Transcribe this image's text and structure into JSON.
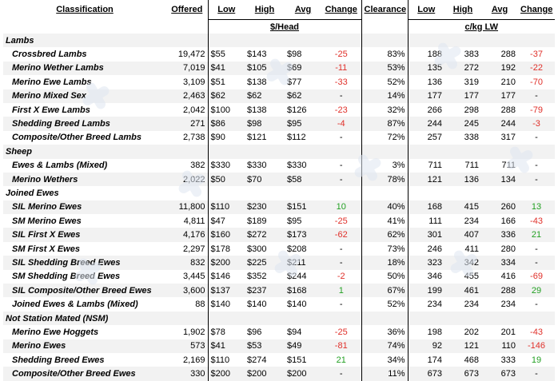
{
  "headers": {
    "classification": "Classification",
    "offered": "Offered",
    "low": "Low",
    "high": "High",
    "avg": "Avg",
    "change": "Change",
    "clearance": "Clearance",
    "low2": "Low",
    "high2": "High",
    "avg2": "Avg",
    "change2": "Change"
  },
  "units": {
    "head": "$/Head",
    "lw": "c/kg LW"
  },
  "rows": [
    {
      "type": "group",
      "label": "Lambs"
    },
    {
      "type": "item",
      "name": "Crossbred Lambs",
      "offered": "19,472",
      "low": "$55",
      "high": "$143",
      "avg": "$98",
      "change": "-25",
      "change_sign": "neg",
      "clearance": "83%",
      "low2": "188",
      "high2": "383",
      "avg2": "288",
      "change2": "-37",
      "change2_sign": "neg"
    },
    {
      "type": "item",
      "name": "Merino Wether Lambs",
      "offered": "7,019",
      "low": "$41",
      "high": "$105",
      "avg": "$69",
      "change": "-11",
      "change_sign": "neg",
      "clearance": "53%",
      "low2": "135",
      "high2": "272",
      "avg2": "192",
      "change2": "-22",
      "change2_sign": "neg"
    },
    {
      "type": "item",
      "name": "Merino Ewe Lambs",
      "offered": "3,109",
      "low": "$51",
      "high": "$138",
      "avg": "$77",
      "change": "-33",
      "change_sign": "neg",
      "clearance": "52%",
      "low2": "136",
      "high2": "319",
      "avg2": "210",
      "change2": "-70",
      "change2_sign": "neg"
    },
    {
      "type": "item",
      "name": "Merino Mixed Sex",
      "offered": "2,463",
      "low": "$62",
      "high": "$62",
      "avg": "$62",
      "change": "-",
      "change_sign": "neu",
      "clearance": "14%",
      "low2": "177",
      "high2": "177",
      "avg2": "177",
      "change2": "-",
      "change2_sign": "neu"
    },
    {
      "type": "item",
      "name": "First X Ewe Lambs",
      "offered": "2,042",
      "low": "$100",
      "high": "$138",
      "avg": "$126",
      "change": "-23",
      "change_sign": "neg",
      "clearance": "32%",
      "low2": "266",
      "high2": "298",
      "avg2": "288",
      "change2": "-79",
      "change2_sign": "neg"
    },
    {
      "type": "item",
      "name": "Shedding Breed Lambs",
      "offered": "271",
      "low": "$86",
      "high": "$98",
      "avg": "$95",
      "change": "-4",
      "change_sign": "neg",
      "clearance": "87%",
      "low2": "244",
      "high2": "245",
      "avg2": "244",
      "change2": "-3",
      "change2_sign": "neg"
    },
    {
      "type": "item",
      "name": "Composite/Other Breed Lambs",
      "offered": "2,738",
      "low": "$90",
      "high": "$121",
      "avg": "$112",
      "change": "-",
      "change_sign": "neu",
      "clearance": "72%",
      "low2": "257",
      "high2": "338",
      "avg2": "317",
      "change2": "-",
      "change2_sign": "neu"
    },
    {
      "type": "group",
      "label": "Sheep"
    },
    {
      "type": "item",
      "name": "Ewes & Lambs (Mixed)",
      "offered": "382",
      "low": "$330",
      "high": "$330",
      "avg": "$330",
      "change": "-",
      "change_sign": "neu",
      "clearance": "3%",
      "low2": "711",
      "high2": "711",
      "avg2": "711",
      "change2": "-",
      "change2_sign": "neu"
    },
    {
      "type": "item",
      "name": "Merino Wethers",
      "offered": "2,022",
      "low": "$50",
      "high": "$70",
      "avg": "$58",
      "change": "-",
      "change_sign": "neu",
      "clearance": "78%",
      "low2": "121",
      "high2": "136",
      "avg2": "134",
      "change2": "-",
      "change2_sign": "neu"
    },
    {
      "type": "group",
      "label": "Joined Ewes"
    },
    {
      "type": "item",
      "name": "SIL Merino Ewes",
      "offered": "11,800",
      "low": "$110",
      "high": "$230",
      "avg": "$151",
      "change": "10",
      "change_sign": "pos",
      "clearance": "40%",
      "low2": "168",
      "high2": "415",
      "avg2": "260",
      "change2": "13",
      "change2_sign": "pos"
    },
    {
      "type": "item",
      "name": "SM Merino Ewes",
      "offered": "4,811",
      "low": "$47",
      "high": "$189",
      "avg": "$95",
      "change": "-25",
      "change_sign": "neg",
      "clearance": "41%",
      "low2": "111",
      "high2": "234",
      "avg2": "166",
      "change2": "-43",
      "change2_sign": "neg"
    },
    {
      "type": "item",
      "name": "SIL First X Ewes",
      "offered": "4,176",
      "low": "$160",
      "high": "$272",
      "avg": "$173",
      "change": "-62",
      "change_sign": "neg",
      "clearance": "62%",
      "low2": "301",
      "high2": "407",
      "avg2": "336",
      "change2": "21",
      "change2_sign": "pos"
    },
    {
      "type": "item",
      "name": "SM First X Ewes",
      "offered": "2,297",
      "low": "$178",
      "high": "$300",
      "avg": "$208",
      "change": "-",
      "change_sign": "neu",
      "clearance": "73%",
      "low2": "246",
      "high2": "411",
      "avg2": "280",
      "change2": "-",
      "change2_sign": "neu"
    },
    {
      "type": "item",
      "name": "SIL Shedding Breed Ewes",
      "offered": "832",
      "low": "$200",
      "high": "$225",
      "avg": "$211",
      "change": "-",
      "change_sign": "neu",
      "clearance": "18%",
      "low2": "323",
      "high2": "342",
      "avg2": "334",
      "change2": "-",
      "change2_sign": "neu"
    },
    {
      "type": "item",
      "name": "SM Shedding Breed Ewes",
      "offered": "3,445",
      "low": "$146",
      "high": "$352",
      "avg": "$244",
      "change": "-2",
      "change_sign": "neg",
      "clearance": "50%",
      "low2": "346",
      "high2": "455",
      "avg2": "416",
      "change2": "-69",
      "change2_sign": "neg"
    },
    {
      "type": "item",
      "name": "SIL Composite/Other Breed Ewes",
      "offered": "3,600",
      "low": "$137",
      "high": "$237",
      "avg": "$168",
      "change": "1",
      "change_sign": "pos",
      "clearance": "67%",
      "low2": "199",
      "high2": "461",
      "avg2": "288",
      "change2": "29",
      "change2_sign": "pos"
    },
    {
      "type": "item",
      "name": "Joined Ewes & Lambs (Mixed)",
      "offered": "88",
      "low": "$140",
      "high": "$140",
      "avg": "$140",
      "change": "-",
      "change_sign": "neu",
      "clearance": "52%",
      "low2": "234",
      "high2": "234",
      "avg2": "234",
      "change2": "-",
      "change2_sign": "neu"
    },
    {
      "type": "group",
      "label": "Not Station Mated (NSM)"
    },
    {
      "type": "item",
      "name": "Merino Ewe Hoggets",
      "offered": "1,902",
      "low": "$78",
      "high": "$96",
      "avg": "$94",
      "change": "-25",
      "change_sign": "neg",
      "clearance": "36%",
      "low2": "198",
      "high2": "202",
      "avg2": "201",
      "change2": "-43",
      "change2_sign": "neg"
    },
    {
      "type": "item",
      "name": "Merino Ewes",
      "offered": "573",
      "low": "$41",
      "high": "$53",
      "avg": "$49",
      "change": "-81",
      "change_sign": "neg",
      "clearance": "74%",
      "low2": "92",
      "high2": "121",
      "avg2": "110",
      "change2": "-146",
      "change2_sign": "neg"
    },
    {
      "type": "item",
      "name": "Shedding Breed Ewes",
      "offered": "2,169",
      "low": "$110",
      "high": "$274",
      "avg": "$151",
      "change": "21",
      "change_sign": "pos",
      "clearance": "34%",
      "low2": "174",
      "high2": "468",
      "avg2": "333",
      "change2": "19",
      "change2_sign": "pos"
    },
    {
      "type": "item",
      "name": "Composite/Other Breed Ewes",
      "offered": "330",
      "low": "$200",
      "high": "$200",
      "avg": "$200",
      "change": "-",
      "change_sign": "neu",
      "clearance": "11%",
      "low2": "673",
      "high2": "673",
      "avg2": "673",
      "change2": "-",
      "change2_sign": "neu"
    }
  ]
}
